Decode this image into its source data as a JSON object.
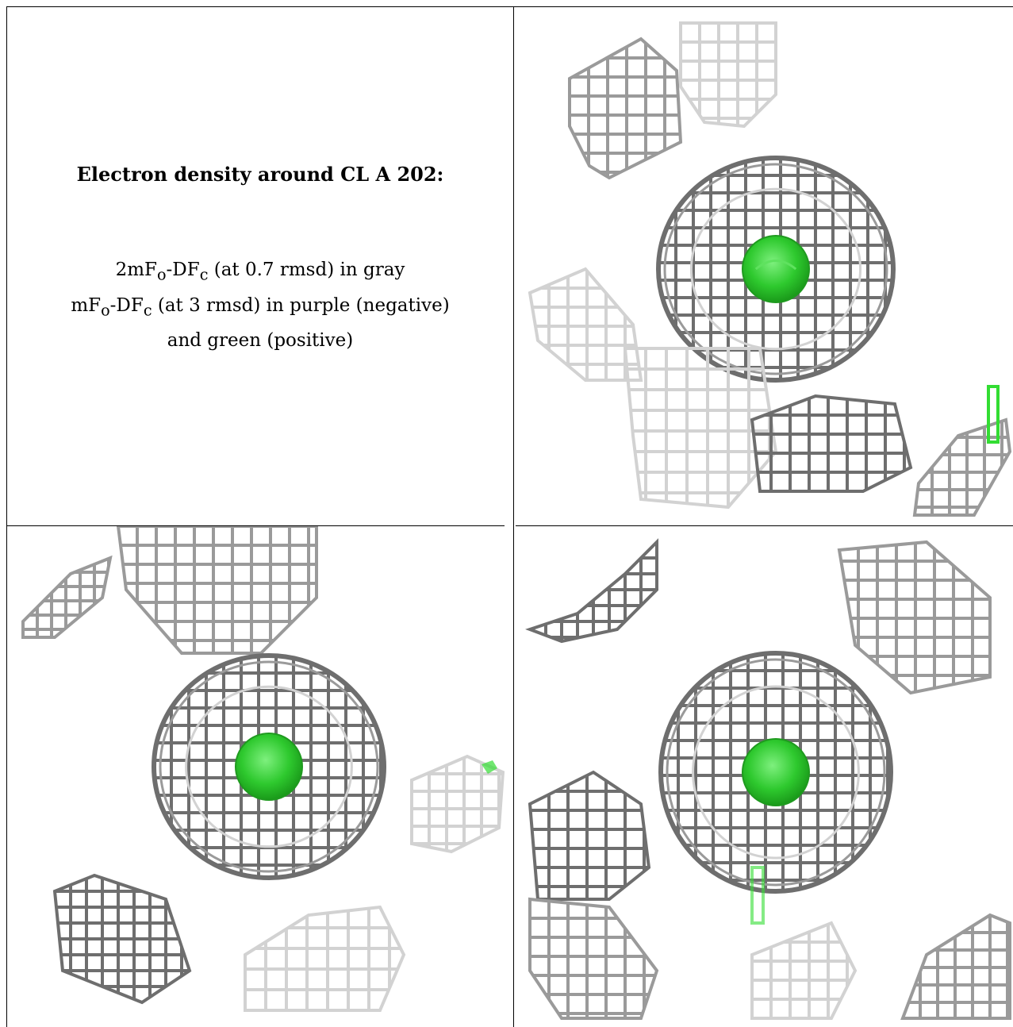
{
  "title": "Electron density around CL A 202:",
  "legend": {
    "line1_prefix": "2mF",
    "line1_sub_o": "o",
    "line1_mid": "-DF",
    "line1_sub_c": "c",
    "line1_suffix": " (at 0.7 rmsd) in gray",
    "line2_prefix": "mF",
    "line2_sub_o": "o",
    "line2_mid": "-DF",
    "line2_sub_c": "c",
    "line2_suffix": " (at 3 rmsd) in purple (negative)",
    "line3": "and green (positive)"
  },
  "colors": {
    "mesh_dark": "#6e6e6e",
    "mesh_mid": "#9a9a9a",
    "mesh_light": "#d2d2d2",
    "atom_green": "#2ec92e",
    "diff_green": "#33dd33"
  },
  "panels": [
    {
      "name": "view-1",
      "atom": "CL"
    },
    {
      "name": "view-2",
      "atom": "CL"
    },
    {
      "name": "view-3",
      "atom": "CL"
    }
  ]
}
